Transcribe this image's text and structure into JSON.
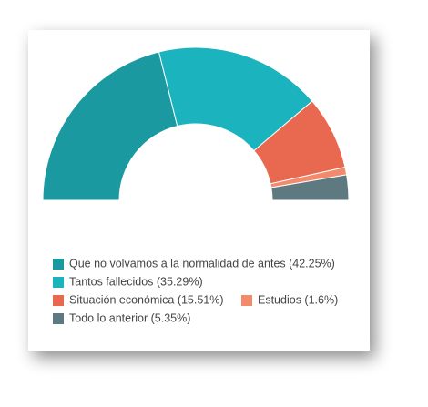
{
  "chart_data": {
    "type": "semi-donut",
    "categories": [
      "Que no volvamos a la normalidad de antes (42.25%)",
      "Tantos fallecidos (35.29%)",
      "Situación económica (15.51%)",
      "Estudios (1.6%)",
      "Todo lo anterior (5.35%)"
    ],
    "values": [
      42.25,
      35.29,
      15.51,
      1.6,
      5.35
    ],
    "colors": [
      "#1a9aa0",
      "#1bb4be",
      "#e8694f",
      "#f38a6c",
      "#5e7a80"
    ]
  }
}
